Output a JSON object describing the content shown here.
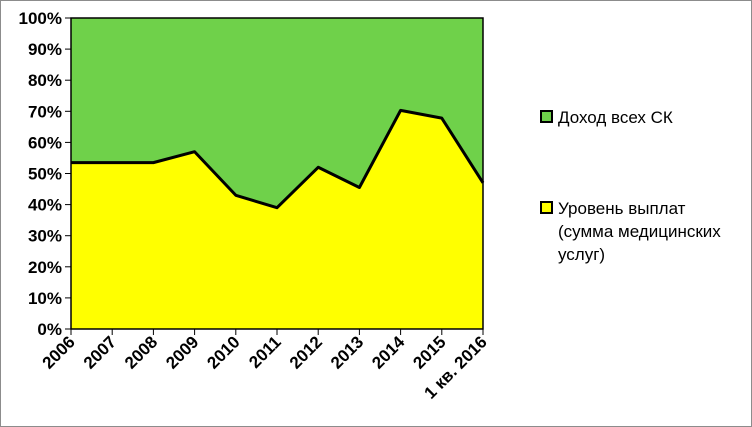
{
  "chart_data": {
    "type": "area",
    "stacked": "percent",
    "categories": [
      "2006",
      "2007",
      "2008",
      "2009",
      "2010",
      "2011",
      "2012",
      "2013",
      "2014",
      "2015",
      "1 кв. 2016"
    ],
    "ylim": [
      0,
      100
    ],
    "y_ticks": [
      "0%",
      "10%",
      "20%",
      "30%",
      "40%",
      "50%",
      "60%",
      "70%",
      "80%",
      "90%",
      "100%"
    ],
    "series": [
      {
        "name": "Уровень  выплат",
        "label_lines": [
          "Уровень  выплат",
          "(сумма медицинских",
          "услуг)"
        ],
        "values": [
          53.5,
          53.5,
          53.5,
          57,
          43,
          39,
          52,
          45.5,
          70.3,
          67.8,
          47
        ],
        "color": "#ffff00"
      },
      {
        "name": "Доход  всех СК",
        "label_lines": [
          "Доход  всех СК"
        ],
        "values": [
          46.5,
          46.5,
          46.5,
          43,
          57,
          61,
          48,
          54.5,
          29.7,
          32.2,
          53
        ],
        "color": "#6fd14a"
      }
    ],
    "legend_position": "right",
    "grid": false,
    "border_color": "#000000"
  }
}
